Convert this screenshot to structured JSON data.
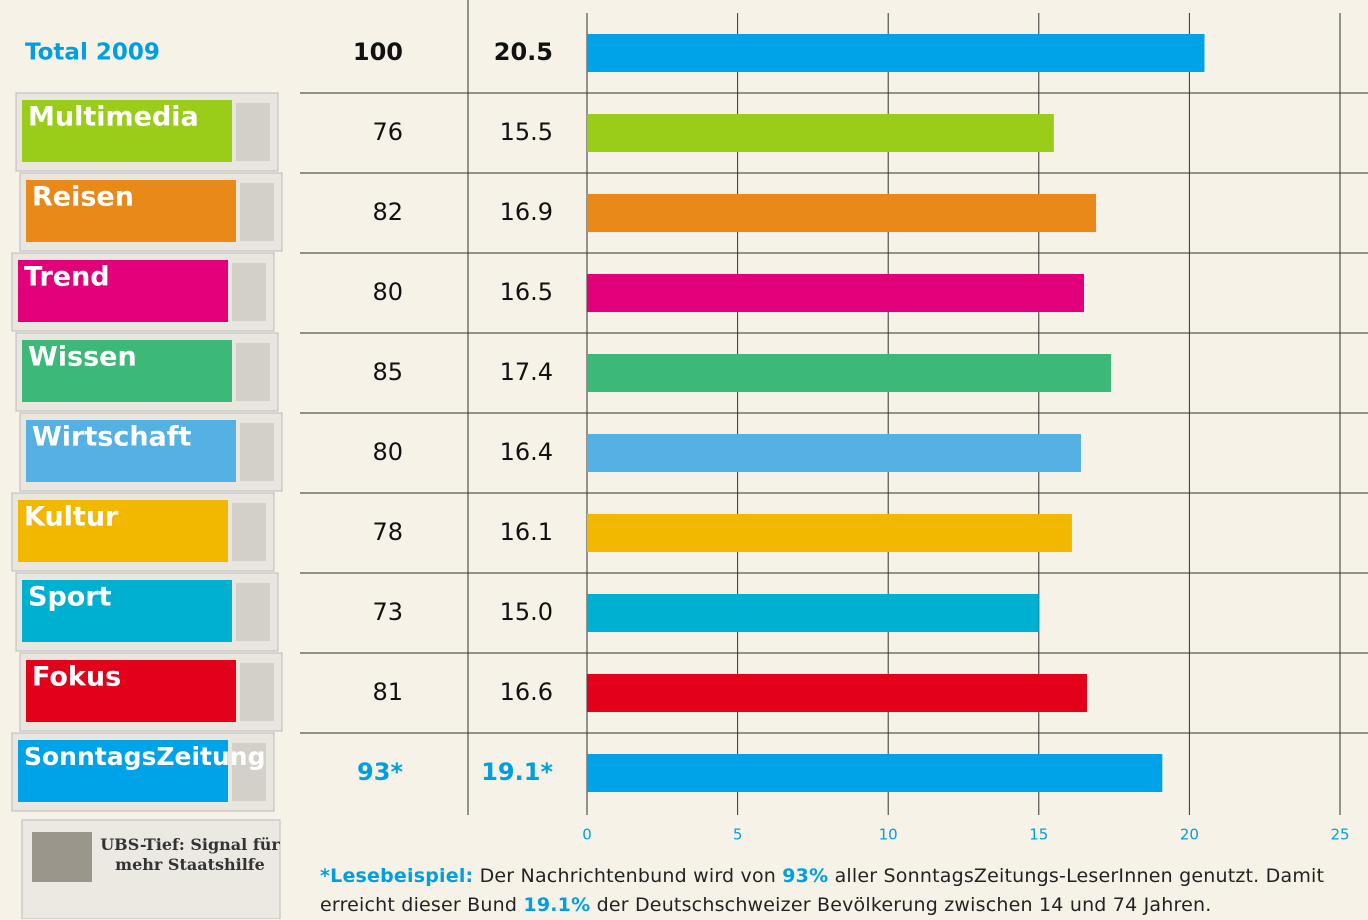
{
  "chart_data": {
    "type": "bar",
    "orientation": "horizontal",
    "categories": [
      "Total 2009",
      "Multimedia",
      "Reisen",
      "Trend",
      "Wissen",
      "Wirtschaft",
      "Kultur",
      "Sport",
      "Fokus",
      "SonntagsZeitung"
    ],
    "index_values": [
      100,
      76,
      82,
      80,
      85,
      80,
      78,
      73,
      81,
      93
    ],
    "index_labels": [
      "100",
      "76",
      "82",
      "80",
      "85",
      "80",
      "78",
      "73",
      "81",
      "93*"
    ],
    "values": [
      20.5,
      15.5,
      16.9,
      16.5,
      17.4,
      16.4,
      16.1,
      15.0,
      16.6,
      19.1
    ],
    "value_labels": [
      "20.5",
      "15.5",
      "16.9",
      "16.5",
      "17.4",
      "16.4",
      "16.1",
      "15.0",
      "16.6",
      "19.1*"
    ],
    "colors": [
      "#00a3e8",
      "#9acd1a",
      "#e8891a",
      "#e2007a",
      "#3cb878",
      "#55b0e4",
      "#f2b800",
      "#00b0d0",
      "#e2001a",
      "#00a3e8"
    ],
    "xlim": [
      0,
      25
    ],
    "xticks": [
      0,
      5,
      10,
      15,
      20,
      25
    ],
    "grid": true,
    "cover_headline": "UBS-Tief: Signal für mehr Staatshilfe",
    "footnote": [
      {
        "text": "*Lesebeispiel:",
        "emphasis": true
      },
      {
        "text": " Der Nachrichtenbund wird von ",
        "emphasis": false
      },
      {
        "text": "93%",
        "emphasis": true
      },
      {
        "text": " aller SonntagsZeitungs-LeserInnen genutzt. Damit erreicht dieser Bund ",
        "emphasis": false
      },
      {
        "text": "19.1%",
        "emphasis": true
      },
      {
        "text": " der Deutschschweizer Bevölkerung zwischen 14 und 74 Jahren.",
        "emphasis": false
      }
    ]
  }
}
